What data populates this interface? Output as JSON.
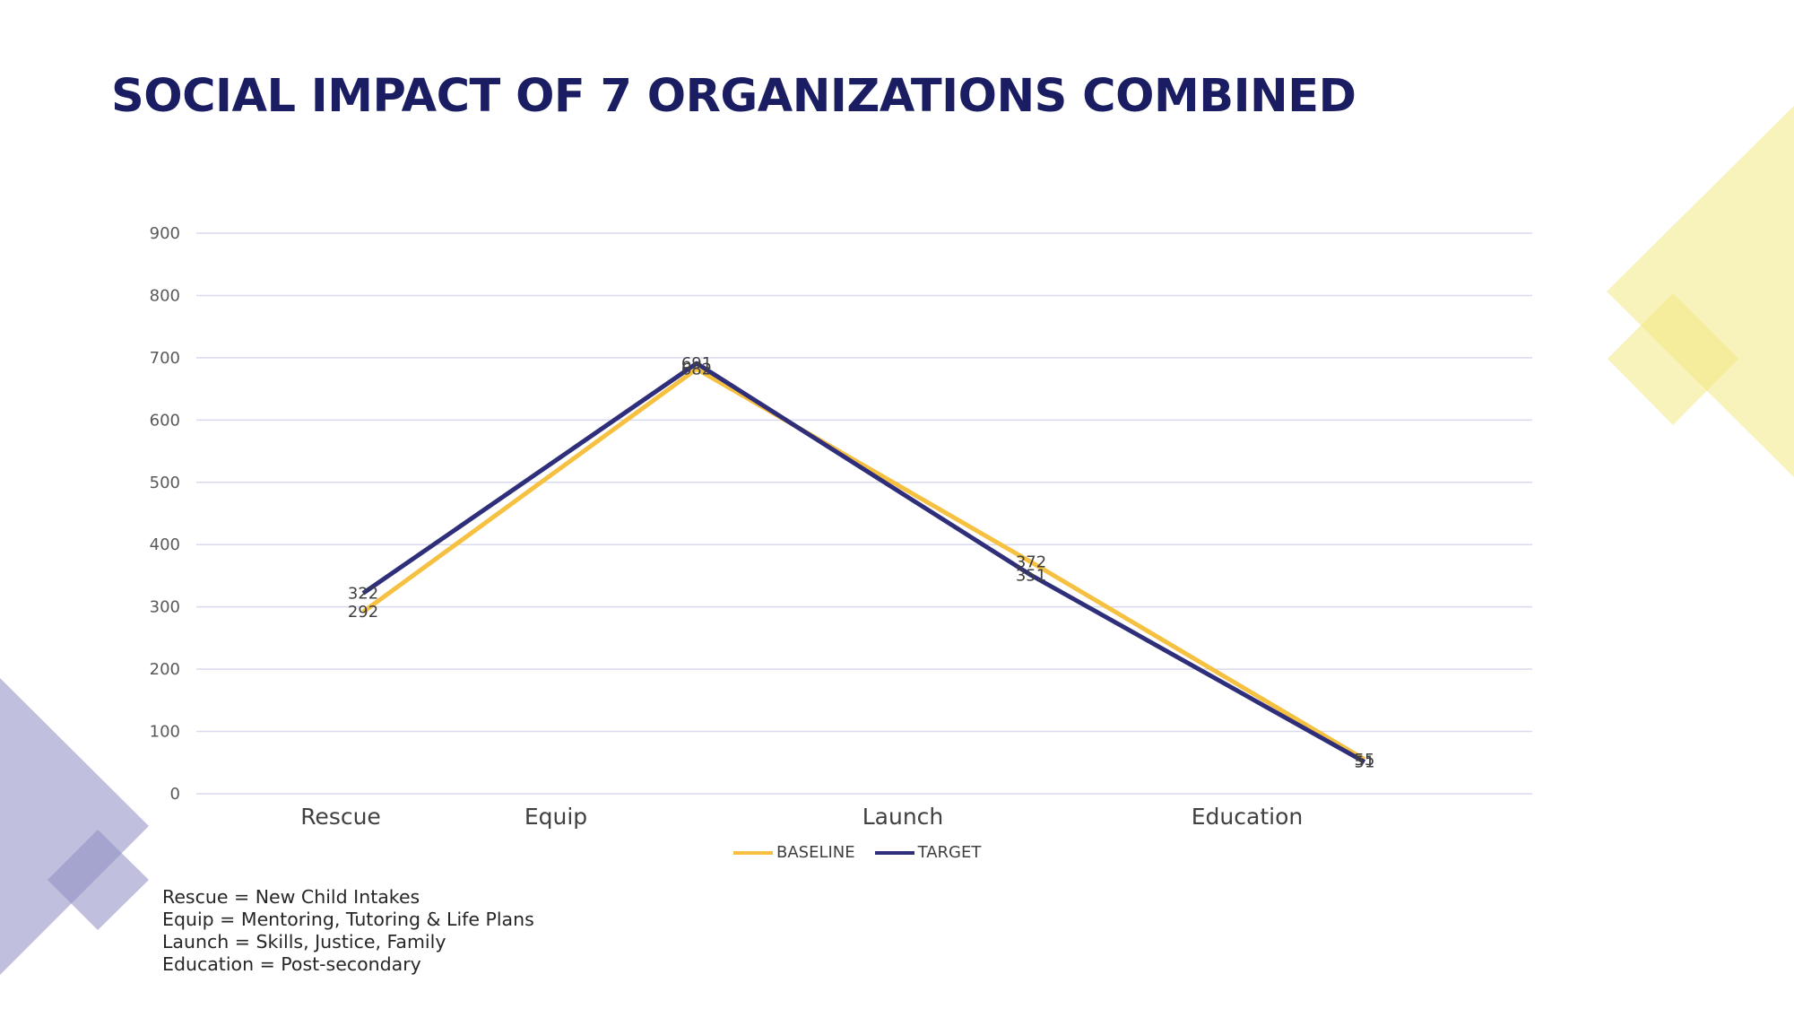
{
  "title": "SOCIAL IMPACT OF 7 ORGANIZATIONS COMBINED",
  "colors": {
    "title": "#1b1d63",
    "baseline": "#f6c040",
    "target": "#2e2e7a",
    "gridline": "#d9d9ef",
    "deco_yellow": "#f2e783",
    "deco_purple": "#8d8dc2"
  },
  "chart_data": {
    "type": "line",
    "categories": [
      "Rescue",
      "Equip",
      "Launch",
      "Education"
    ],
    "y_ticks": [
      "0",
      "100",
      "200",
      "300",
      "400",
      "500",
      "600",
      "700",
      "800",
      "900"
    ],
    "ylim": [
      0,
      900
    ],
    "series": [
      {
        "name": "BASELINE",
        "values": [
          292,
          682,
          372,
          55
        ],
        "labels": [
          "292",
          "682",
          "372",
          "55"
        ]
      },
      {
        "name": "TARGET",
        "values": [
          322,
          691,
          351,
          51
        ],
        "labels": [
          "322",
          "691",
          "351",
          "51"
        ]
      }
    ],
    "legend_position": "bottom"
  },
  "notes": [
    "Rescue = New Child Intakes",
    "Equip = Mentoring, Tutoring & Life Plans",
    "Launch = Skills, Justice, Family",
    "Education = Post-secondary"
  ]
}
